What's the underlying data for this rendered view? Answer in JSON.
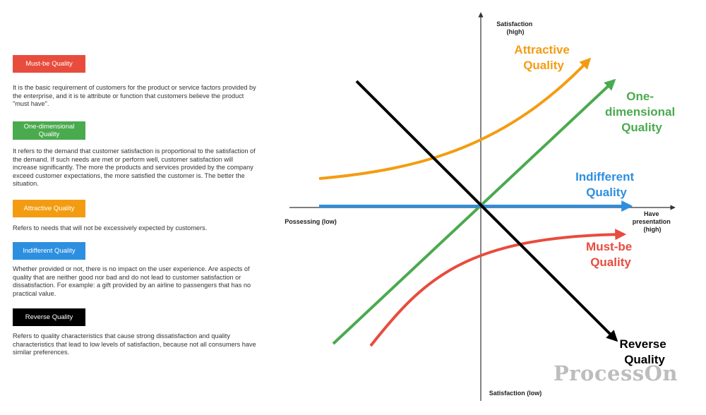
{
  "colors": {
    "must_be": "#e84c3d",
    "one_dimensional": "#4aaa4e",
    "attractive": "#f39c12",
    "indifferent": "#2d8fe0",
    "reverse": "#000000",
    "axis": "#333333"
  },
  "legend": [
    {
      "key": "must_be",
      "title": "Must-be Quality",
      "description": "It is the basic requirement of customers for the product or service factors provided by the enterprise, and it is te attribute or function that customers believe the product \"must have\"."
    },
    {
      "key": "one_dimensional",
      "title": "One-dimensional Quality",
      "description": "It refers to the demand that customer satisfaction is proportional to the satisfaction of the demand. If such needs are met or perform well, customer satisfaction will increase significantly. The more the products and services provided by the company exceed customer expectations, the more satisfied the customer is. The better the situation."
    },
    {
      "key": "attractive",
      "title": "Attractive Quality",
      "description": "Refers to needs that will not be excessively expected by customers."
    },
    {
      "key": "indifferent",
      "title": "Indifferent Quality",
      "description": "Whether provided or not, there is no impact on the user experience. Are aspects of quality that are neither good nor bad and do not lead to customer satisfaction or dissatisfaction. For example: a gift provided by an airline to passengers that has no practical value."
    },
    {
      "key": "reverse",
      "title": "Reverse Quality",
      "description": "Refers to quality characteristics that cause strong dissatisfaction and quality characteristics that lead to low levels of satisfaction, because not all consumers have similar preferences."
    }
  ],
  "axes": {
    "y_top": [
      "Satisfaction",
      "(high)"
    ],
    "y_bottom": "Satisfaction (low)",
    "x_left": "Possessing (low)",
    "x_right": [
      "Have",
      "presentation",
      "(high)"
    ]
  },
  "curve_labels": {
    "attractive": [
      "Attractive",
      "Quality"
    ],
    "one_dimensional": [
      "One-",
      "dimensional",
      "Quality"
    ],
    "indifferent": [
      "Indifferent",
      "Quality"
    ],
    "must_be": [
      "Must-be",
      "Quality"
    ],
    "reverse": [
      "Reverse",
      "Quality"
    ]
  },
  "watermark": "ProcessOn"
}
